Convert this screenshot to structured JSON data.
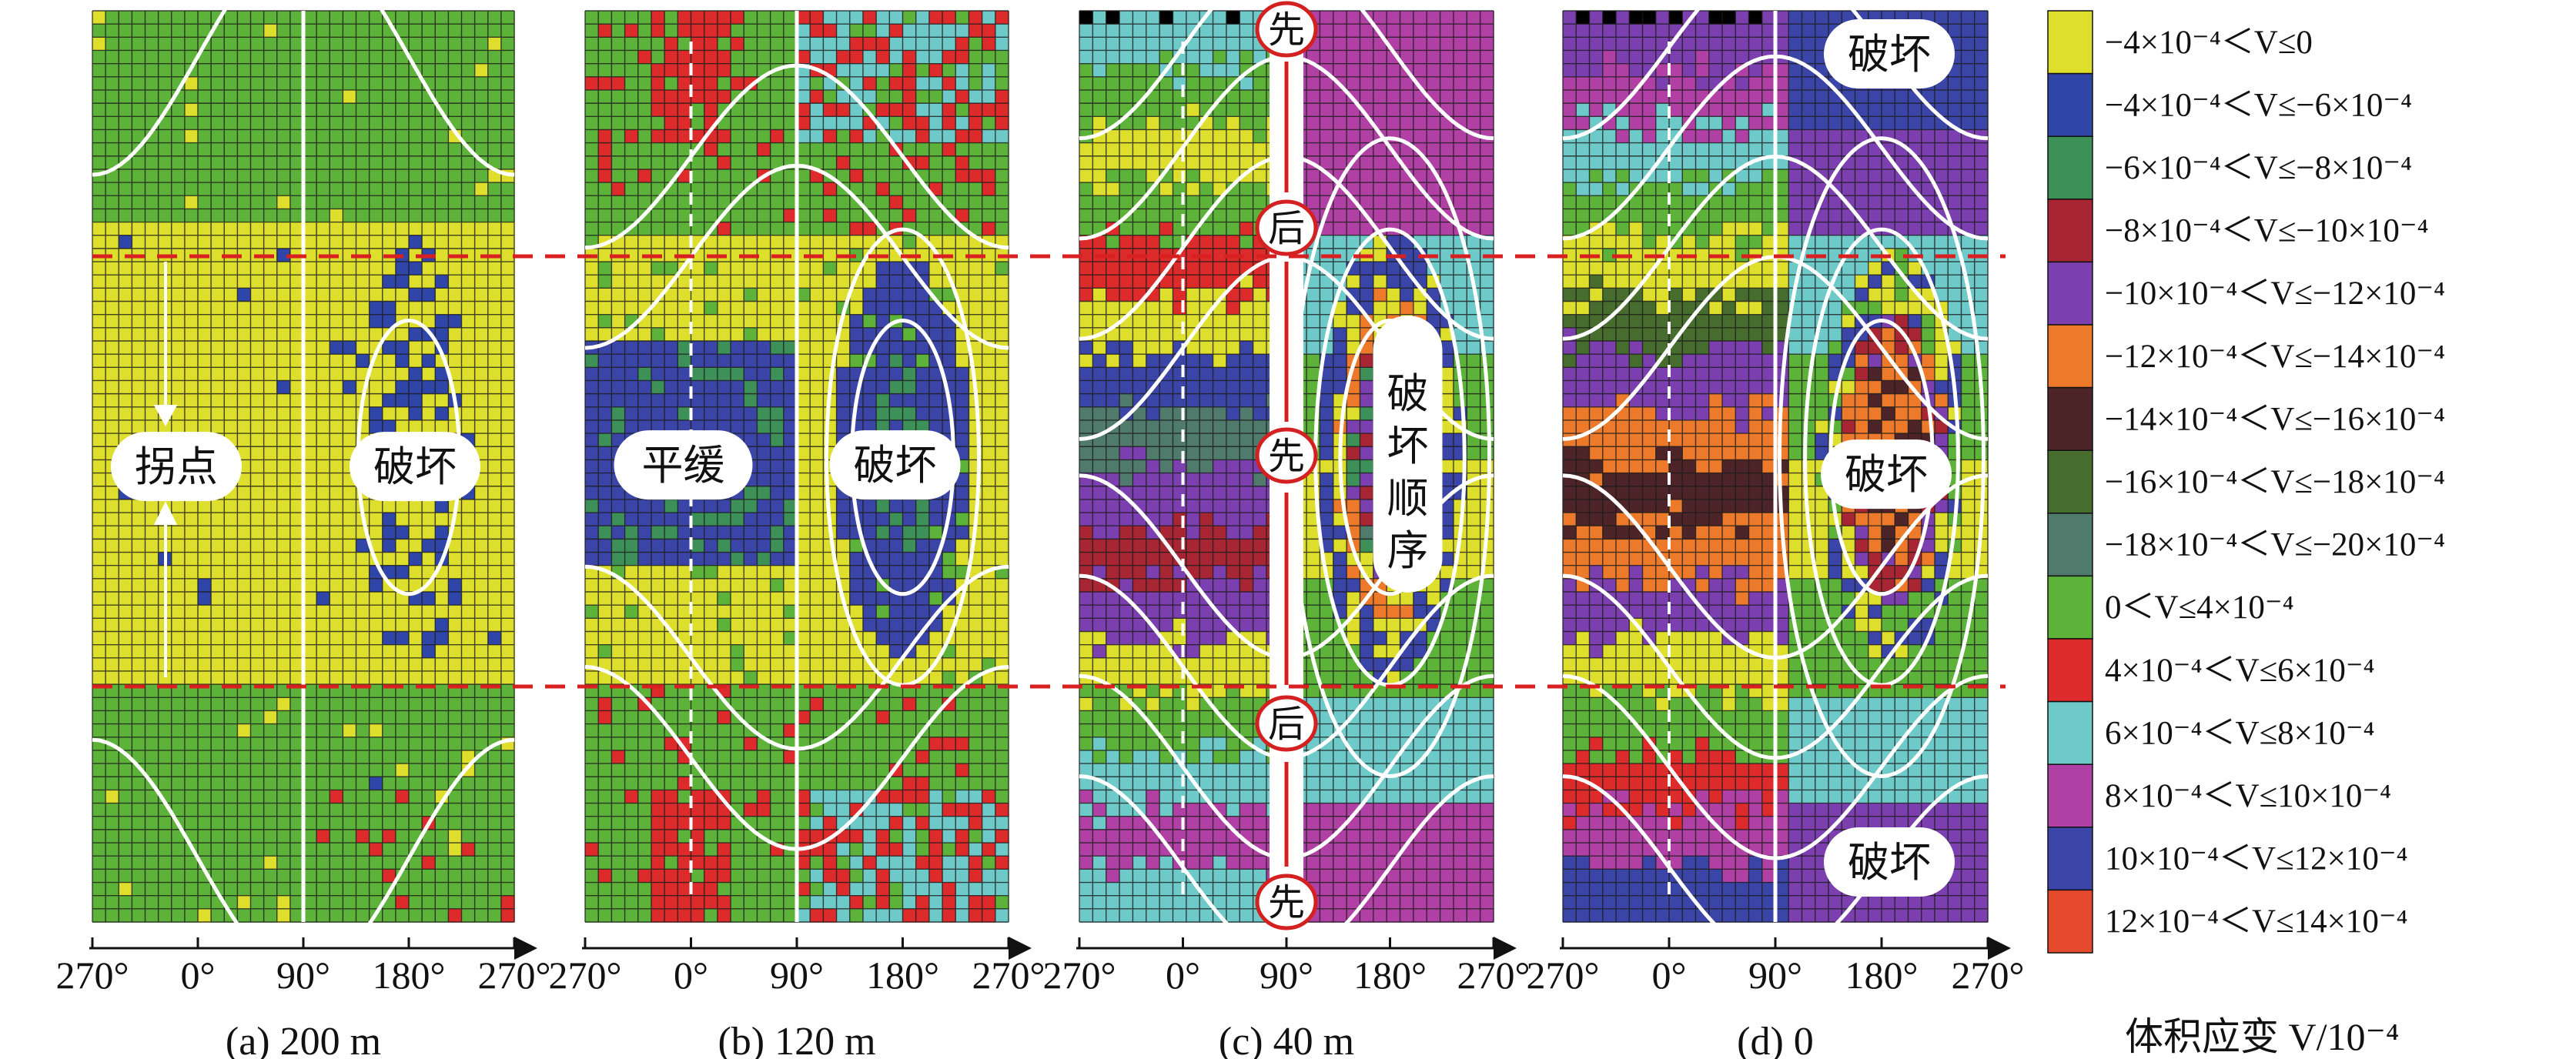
{
  "chart_data": {
    "type": "heatmap",
    "x_ticks": [
      "270°",
      "0°",
      "90°",
      "180°",
      "270°"
    ],
    "colorbar_title": "体积应变 V/10⁻⁴",
    "legend": [
      {
        "label": "−4×10⁻⁴＜V≤0",
        "color": "#dede2c"
      },
      {
        "label": "−4×10⁻⁴＜V≤−6×10⁻⁴",
        "color": "#2f45a8"
      },
      {
        "label": "−6×10⁻⁴＜V≤−8×10⁻⁴",
        "color": "#3d9158"
      },
      {
        "label": "−8×10⁻⁴＜V≤−10×10⁻⁴",
        "color": "#a82634"
      },
      {
        "label": "−10×10⁻⁴＜V≤−12×10⁻⁴",
        "color": "#7c3fb0"
      },
      {
        "label": "−12×10⁻⁴＜V≤−14×10⁻⁴",
        "color": "#ec7a2a"
      },
      {
        "label": "−14×10⁻⁴＜V≤−16×10⁻⁴",
        "color": "#4d2428"
      },
      {
        "label": "−16×10⁻⁴＜V≤−18×10⁻⁴",
        "color": "#476d2e"
      },
      {
        "label": "−18×10⁻⁴＜V≤−20×10⁻⁴",
        "color": "#4f7a6c"
      },
      {
        "label": "0＜V≤4×10⁻⁴",
        "color": "#5db339"
      },
      {
        "label": "4×10⁻⁴＜V≤6×10⁻⁴",
        "color": "#dd2b2b"
      },
      {
        "label": "6×10⁻⁴＜V≤8×10⁻⁴",
        "color": "#6ec9c9"
      },
      {
        "label": "8×10⁻⁴＜V≤10×10⁻⁴",
        "color": "#b140a4"
      },
      {
        "label": "10×10⁻⁴＜V≤12×10⁻⁴",
        "color": "#3b45a8"
      },
      {
        "label": "12×10⁻⁴＜V≤14×10⁻⁴",
        "color": "#e64a2c"
      }
    ],
    "panels": [
      {
        "caption": "(a) 200 m",
        "labels": [
          "拐点",
          "破坏"
        ]
      },
      {
        "caption": "(b) 120 m",
        "labels": [
          "平缓",
          "破坏"
        ]
      },
      {
        "caption": "(c) 40 m",
        "labels": [
          "破坏顺序"
        ],
        "sequence": [
          "先",
          "后",
          "先",
          "后",
          "先"
        ]
      },
      {
        "caption": "(d) 0",
        "labels": [
          "破坏",
          "破坏",
          "破坏"
        ]
      }
    ]
  }
}
